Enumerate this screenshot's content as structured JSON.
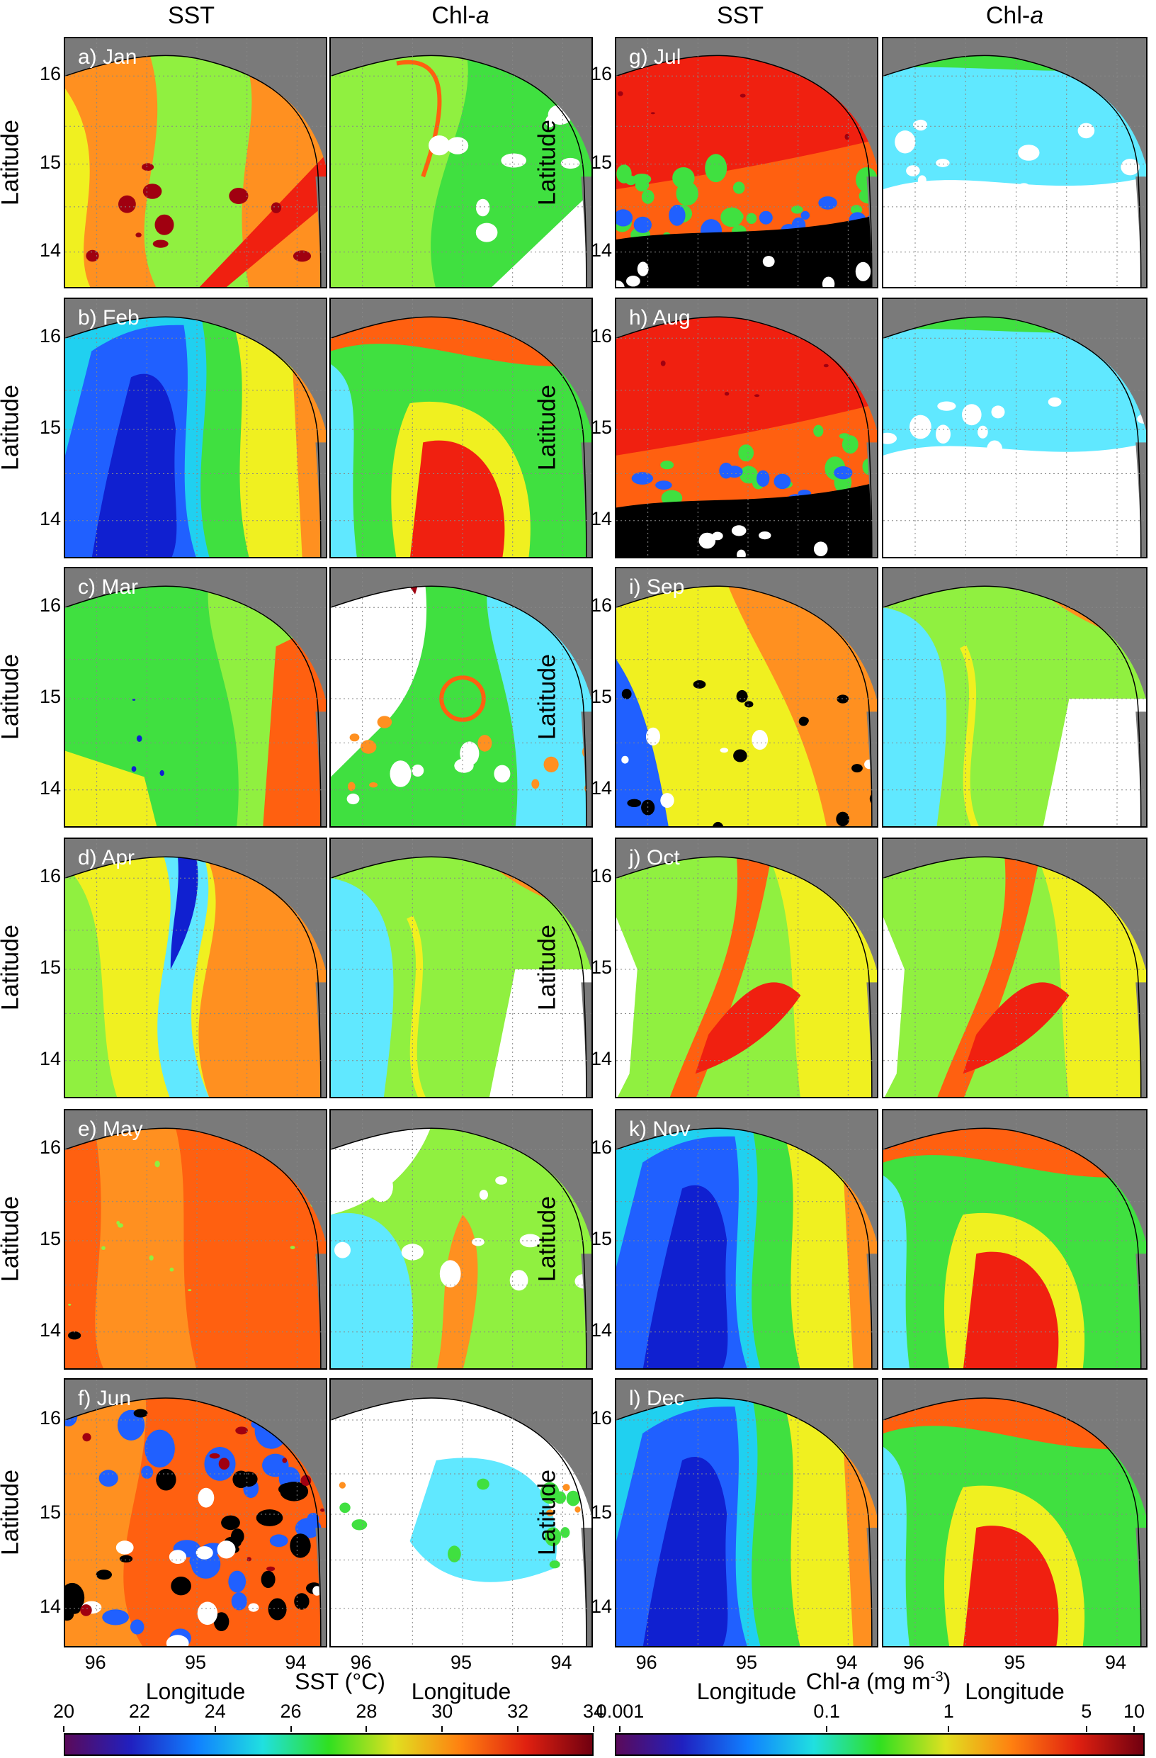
{
  "column_headers": [
    {
      "text": "SST",
      "italic": ""
    },
    {
      "text": "Chl-",
      "italic": "a"
    },
    {
      "text": "SST",
      "italic": ""
    },
    {
      "text": "Chl-",
      "italic": "a"
    }
  ],
  "y_axis_label": "Latitude",
  "x_axis_label": "Longitude",
  "latitude_ticks": [
    "16",
    "15",
    "14"
  ],
  "longitude_ticks": [
    "96",
    "95",
    "94"
  ],
  "panels": [
    {
      "label": "a) Jan",
      "sst_scheme": "mixed-warm",
      "chl_scheme": "green-mixed"
    },
    {
      "label": "b) Feb",
      "sst_scheme": "cold-tongue",
      "chl_scheme": "high-red"
    },
    {
      "label": "c) Mar",
      "sst_scheme": "green",
      "chl_scheme": "cloud-green"
    },
    {
      "label": "d) Apr",
      "sst_scheme": "cold-front",
      "chl_scheme": "cyan-green"
    },
    {
      "label": "e) May",
      "sst_scheme": "warm-orange",
      "chl_scheme": "cloud-cyan"
    },
    {
      "label": "f) Jun",
      "sst_scheme": "hot-cloudy",
      "chl_scheme": "mostly-cloud"
    },
    {
      "label": "g) Jul",
      "sst_scheme": "hot-cloudy-south",
      "chl_scheme": "cyan-cloud"
    },
    {
      "label": "h) Aug",
      "sst_scheme": "hot-cloudy-south",
      "chl_scheme": "cyan-cloud"
    },
    {
      "label": "i) Sep",
      "sst_scheme": "warm-yellow",
      "chl_scheme": "cyan-green"
    },
    {
      "label": "j) Oct",
      "sst_scheme": "plume",
      "chl_scheme": "plume"
    },
    {
      "label": "k) Nov",
      "sst_scheme": "cold-tongue",
      "chl_scheme": "high-red"
    },
    {
      "label": "l) Dec",
      "sst_scheme": "cold-tongue",
      "chl_scheme": "high-red"
    }
  ],
  "colorbars": {
    "sst": {
      "title_text": "SST (°C)",
      "ticks": [
        "20",
        "22",
        "24",
        "26",
        "28",
        "30",
        "32",
        "34"
      ],
      "colors": [
        "#5a0a5a",
        "#2020c0",
        "#1080ff",
        "#20e0e0",
        "#30e020",
        "#e0e020",
        "#ff8010",
        "#e02010",
        "#700010"
      ]
    },
    "chl": {
      "title_text": "Chl-",
      "title_italic": "a",
      "title_unit": " (mg m",
      "title_sup": "-3",
      "title_close": ")",
      "ticks": [
        "0.001",
        "0.1",
        "1",
        "5",
        "10"
      ],
      "colors": [
        "#5a0a5a",
        "#2020c0",
        "#1080ff",
        "#20e0e0",
        "#30e020",
        "#e0e020",
        "#ff8010",
        "#e02010",
        "#700010"
      ]
    }
  }
}
